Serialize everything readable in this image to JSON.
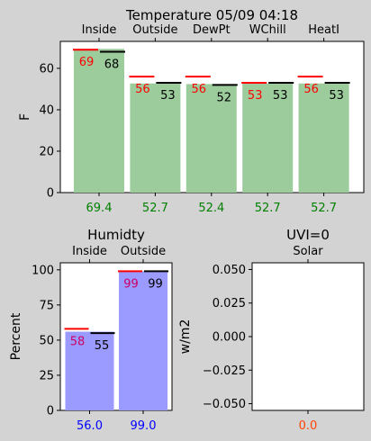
{
  "chart_data": [
    {
      "type": "bar",
      "title": "Temperature 05/09 04:18",
      "ylabel": "F",
      "ylim": [
        0,
        73
      ],
      "yticks": [
        0,
        20,
        40,
        60
      ],
      "categories": [
        "Inside",
        "Outside",
        "DewPt",
        "WChill",
        "HeatI"
      ],
      "values": [
        69.4,
        52.7,
        52.4,
        52.7,
        52.7
      ],
      "value_labels": [
        "69.4",
        "52.7",
        "52.4",
        "52.7",
        "52.7"
      ],
      "high_marks": [
        69,
        56,
        56,
        53,
        56
      ],
      "low_marks": [
        68,
        53,
        52,
        53,
        53
      ],
      "colors": {
        "bar": "#9ccc9c",
        "high": "#ff0000",
        "low": "#000000",
        "value_label": "#008000"
      }
    },
    {
      "type": "bar",
      "title": "Humidty",
      "ylabel": "Percent",
      "ylim": [
        0,
        105
      ],
      "yticks": [
        0,
        25,
        50,
        75,
        100
      ],
      "categories": [
        "Inside",
        "Outside"
      ],
      "values": [
        56.0,
        99.0
      ],
      "value_labels": [
        "56.0",
        "99.0"
      ],
      "high_marks": [
        58,
        99
      ],
      "low_marks": [
        55,
        99
      ],
      "colors": {
        "bar": "#9a9aff",
        "high": "#ff0000",
        "low": "#000000",
        "value_label": "#0000ff",
        "high_label": "#cc0066"
      }
    },
    {
      "type": "bar",
      "title": "UVI=0",
      "ylabel": "w/m2",
      "ylim": [
        -0.055,
        0.055
      ],
      "yticks": [
        -0.05,
        -0.025,
        0.0,
        0.025,
        0.05
      ],
      "ytick_labels": [
        "−0.050",
        "−0.025",
        "0.000",
        "0.025",
        "0.050"
      ],
      "categories": [
        "Solar"
      ],
      "values": [
        0.0
      ],
      "value_labels": [
        "0.0"
      ],
      "colors": {
        "value_label": "#ff4500"
      }
    }
  ]
}
